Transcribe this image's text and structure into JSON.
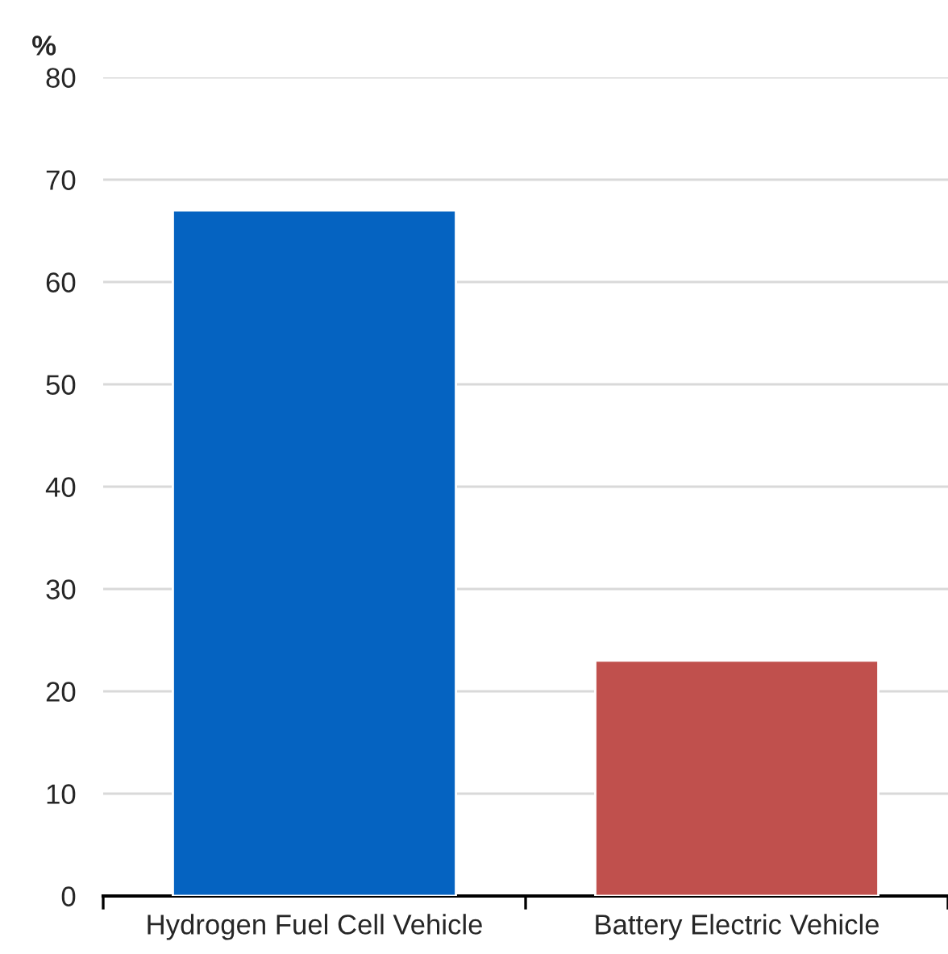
{
  "chart_data": {
    "type": "bar",
    "ylabel": "%",
    "categories": [
      "Hydrogen Fuel Cell Vehicle",
      "Battery Electric Vehicle"
    ],
    "values": [
      67,
      23
    ],
    "colors": [
      "#0563c1",
      "#c0504d"
    ],
    "ylim": [
      0,
      80
    ],
    "yticks": [
      0,
      10,
      20,
      30,
      40,
      50,
      60,
      70,
      80
    ],
    "grid": "y",
    "legend": false
  }
}
